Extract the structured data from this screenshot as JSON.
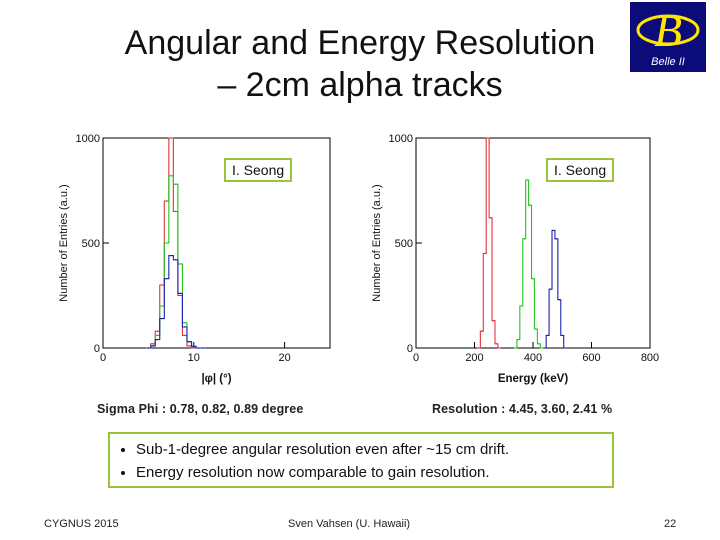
{
  "slide": {
    "title_line1": "Angular and Energy Resolution",
    "title_line2": "– 2cm alpha tracks",
    "logo_text": "Belle II",
    "logo_letter": "B",
    "annotation_left": "I. Seong",
    "annotation_right": "I. Seong",
    "caption_left": "Sigma Phi : 0.78, 0.82, 0.89 degree",
    "caption_right": "Resolution : 4.45, 3.60, 2.41 %",
    "bullets": [
      "Sub-1-degree angular resolution even after ~15 cm drift.",
      "Energy resolution now comparable to gain resolution."
    ],
    "footer_left": "CYGNUS 2015",
    "footer_center": "Sven Vahsen (U. Hawaii)",
    "footer_right": "22"
  },
  "colors": {
    "red": "#e0323a",
    "green": "#23c323",
    "blue": "#2020b0",
    "annotation_border": "#9cc23c",
    "logo_bg": "#0b0c7a",
    "logo_fg": "#ffe600"
  },
  "chart_data": [
    {
      "type": "line",
      "xlabel": "|φ| (°)",
      "ylabel": "Number of Entries (a.u.)",
      "xlim": [
        0,
        25
      ],
      "ylim": [
        0,
        1000
      ],
      "xticks": [
        "0",
        "10",
        "20"
      ],
      "yticks": [
        "0",
        "500",
        "1000"
      ],
      "series": [
        {
          "color": "#e0323a",
          "x": [
            5,
            5.5,
            6,
            6.5,
            7,
            7.5,
            8,
            8.5,
            9,
            9.5,
            10,
            10.5,
            11
          ],
          "values": [
            0,
            20,
            80,
            300,
            700,
            1000,
            650,
            250,
            60,
            10,
            0,
            0,
            0
          ]
        },
        {
          "color": "#23c323",
          "x": [
            5,
            5.5,
            6,
            6.5,
            7,
            7.5,
            8,
            8.5,
            9,
            9.5,
            10,
            10.5,
            11
          ],
          "values": [
            0,
            10,
            60,
            200,
            500,
            820,
            780,
            400,
            120,
            30,
            5,
            0,
            0
          ]
        },
        {
          "color": "#2020b0",
          "x": [
            5,
            5.5,
            6,
            6.5,
            7,
            7.5,
            8,
            8.5,
            9,
            9.5,
            10,
            10.5,
            11
          ],
          "values": [
            0,
            10,
            40,
            140,
            330,
            440,
            420,
            260,
            100,
            30,
            8,
            0,
            0
          ]
        }
      ]
    },
    {
      "type": "line",
      "xlabel": "Energy (keV)",
      "ylabel": "Number of Entries (a.u.)",
      "xlim": [
        0,
        800
      ],
      "ylim": [
        0,
        1000
      ],
      "xticks": [
        "0",
        "200",
        "400",
        "600",
        "800"
      ],
      "yticks": [
        "0",
        "500",
        "1000"
      ],
      "series": [
        {
          "color": "#e0323a",
          "x": [
            215,
            225,
            235,
            245,
            255,
            265,
            275,
            285
          ],
          "values": [
            0,
            80,
            450,
            1000,
            620,
            130,
            20,
            0
          ]
        },
        {
          "color": "#23c323",
          "x": [
            340,
            350,
            360,
            370,
            380,
            390,
            400,
            410,
            420,
            430
          ],
          "values": [
            0,
            40,
            200,
            520,
            800,
            680,
            330,
            90,
            20,
            0
          ]
        },
        {
          "color": "#2020b0",
          "x": [
            440,
            450,
            460,
            470,
            480,
            490,
            500,
            510
          ],
          "values": [
            0,
            60,
            280,
            560,
            520,
            230,
            60,
            0
          ]
        }
      ]
    }
  ]
}
